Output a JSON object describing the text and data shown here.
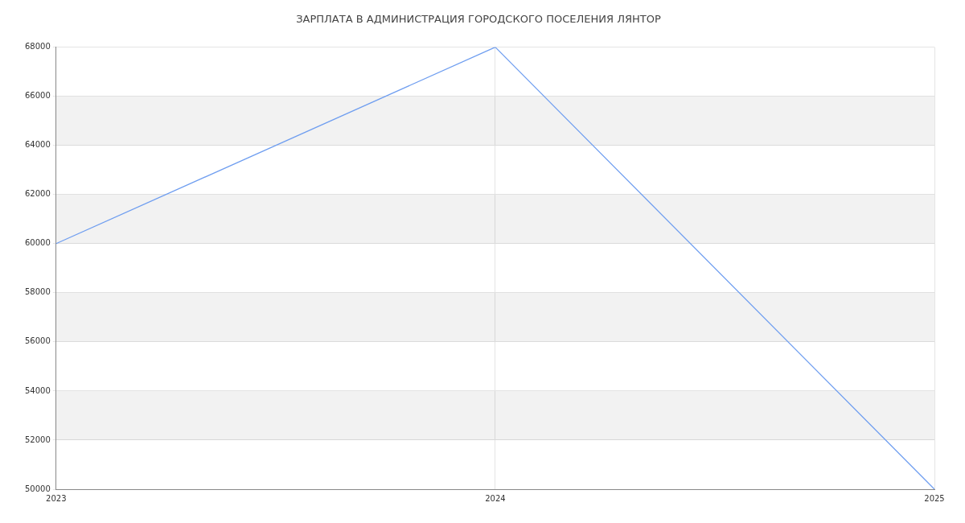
{
  "chart_data": {
    "type": "line",
    "title": "ЗАРПЛАТА В АДМИНИСТРАЦИЯ ГОРОДСКОГО ПОСЕЛЕНИЯ ЛЯНТОР",
    "categories": [
      "2023",
      "2024",
      "2025"
    ],
    "series": [
      {
        "color": "#6f9ef0",
        "values": [
          60000,
          68000,
          50000
        ]
      }
    ],
    "ylim": [
      50000,
      68000
    ],
    "yticks": [
      50000,
      52000,
      54000,
      56000,
      58000,
      60000,
      62000,
      64000,
      66000,
      68000
    ],
    "grid": true,
    "legend": false,
    "marker": "none",
    "line_style": "solid"
  }
}
